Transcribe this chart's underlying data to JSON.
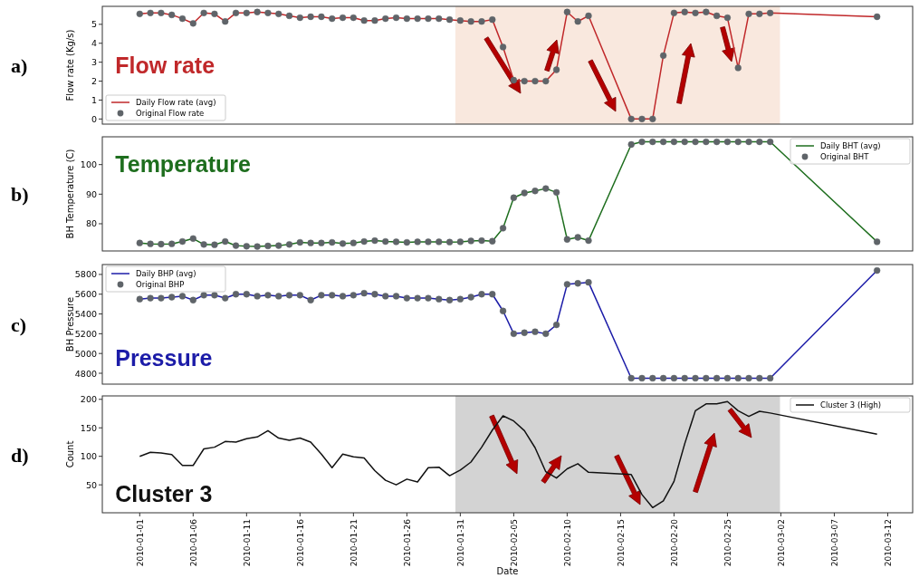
{
  "chart_data": [
    {
      "type": "line",
      "ylabel": "Flow rate (Kg/s)",
      "annotations": [
        "a)",
        "Flow rate"
      ],
      "xlim": [
        "2009-12-28T12:00",
        "2010-03-14T08:00"
      ],
      "ylim": [
        -0.27,
        5.95
      ],
      "yticks": [
        0,
        1,
        2,
        3,
        4,
        5
      ],
      "tick_labels": "y",
      "legend": "bottom left",
      "grid": false,
      "x": [
        "2010-01-01",
        "2010-01-02",
        "2010-01-03",
        "2010-01-04",
        "2010-01-05",
        "2010-01-06",
        "2010-01-07",
        "2010-01-08",
        "2010-01-09",
        "2010-01-10",
        "2010-01-11",
        "2010-01-12",
        "2010-01-13",
        "2010-01-14",
        "2010-01-15",
        "2010-01-16",
        "2010-01-17",
        "2010-01-18",
        "2010-01-19",
        "2010-01-20",
        "2010-01-21",
        "2010-01-22",
        "2010-01-23",
        "2010-01-24",
        "2010-01-25",
        "2010-01-26",
        "2010-01-27",
        "2010-01-28",
        "2010-01-29",
        "2010-01-30",
        "2010-01-31",
        "2010-02-01",
        "2010-02-02",
        "2010-02-03",
        "2010-02-04",
        "2010-02-05",
        "2010-02-06",
        "2010-02-07",
        "2010-02-08",
        "2010-02-09",
        "2010-02-10",
        "2010-02-11",
        "2010-02-12",
        "2010-02-16",
        "2010-02-17",
        "2010-02-18",
        "2010-02-19",
        "2010-02-20",
        "2010-02-21",
        "2010-02-22",
        "2010-02-23",
        "2010-02-24",
        "2010-02-25",
        "2010-02-26",
        "2010-02-27",
        "2010-02-28",
        "2010-03-01",
        "2010-03-11"
      ],
      "bands": [
        {
          "axis": "x",
          "from": "2010-01-30T13:00",
          "to": "2010-03-01T22:00",
          "color": "#f9e8de"
        }
      ],
      "series": [
        {
          "name": "Daily Flow rate (avg)",
          "color": "#c0282a",
          "values": [
            5.55,
            5.6,
            5.6,
            5.5,
            5.3,
            5.05,
            5.6,
            5.55,
            5.15,
            5.6,
            5.6,
            5.65,
            5.6,
            5.55,
            5.45,
            5.35,
            5.4,
            5.4,
            5.3,
            5.35,
            5.35,
            5.2,
            5.2,
            5.3,
            5.35,
            5.3,
            5.3,
            5.3,
            5.3,
            5.25,
            5.2,
            5.15,
            5.15,
            5.25,
            3.8,
            2.05,
            2.0,
            2.0,
            2.0,
            2.6,
            5.65,
            5.15,
            5.45,
            0,
            0,
            0,
            3.35,
            5.6,
            5.65,
            5.6,
            5.65,
            5.45,
            5.35,
            2.7,
            5.55,
            5.55,
            5.6,
            5.4
          ]
        },
        {
          "name": "Original Flow rate",
          "type": "scatter",
          "marker": "circle",
          "color": "#5f6469",
          "values": [
            5.55,
            5.6,
            5.6,
            5.5,
            5.3,
            5.05,
            5.6,
            5.55,
            5.15,
            5.6,
            5.6,
            5.65,
            5.6,
            5.55,
            5.45,
            5.35,
            5.4,
            5.4,
            5.3,
            5.35,
            5.35,
            5.2,
            5.2,
            5.3,
            5.35,
            5.3,
            5.3,
            5.3,
            5.3,
            5.25,
            5.2,
            5.15,
            5.15,
            5.25,
            3.8,
            2.05,
            2.0,
            2.0,
            2.0,
            2.6,
            5.65,
            5.15,
            5.45,
            0,
            0,
            0,
            3.35,
            5.6,
            5.65,
            5.6,
            5.65,
            5.45,
            5.35,
            2.7,
            5.55,
            5.55,
            5.6,
            5.4
          ]
        }
      ]
    },
    {
      "type": "line",
      "ylabel": "BH Temperature (C)",
      "annotations": [
        "b)",
        "Temperature"
      ],
      "xlim": [
        "2009-12-28T12:00",
        "2010-03-14T08:00"
      ],
      "ylim": [
        70.8,
        109.4
      ],
      "yticks": [
        80,
        90,
        100
      ],
      "tick_labels": "y",
      "legend": "top right",
      "grid": false,
      "x": [
        "2010-01-01",
        "2010-01-02",
        "2010-01-03",
        "2010-01-04",
        "2010-01-05",
        "2010-01-06",
        "2010-01-07",
        "2010-01-08",
        "2010-01-09",
        "2010-01-10",
        "2010-01-11",
        "2010-01-12",
        "2010-01-13",
        "2010-01-14",
        "2010-01-15",
        "2010-01-16",
        "2010-01-17",
        "2010-01-18",
        "2010-01-19",
        "2010-01-20",
        "2010-01-21",
        "2010-01-22",
        "2010-01-23",
        "2010-01-24",
        "2010-01-25",
        "2010-01-26",
        "2010-01-27",
        "2010-01-28",
        "2010-01-29",
        "2010-01-30",
        "2010-01-31",
        "2010-02-01",
        "2010-02-02",
        "2010-02-03",
        "2010-02-04",
        "2010-02-05",
        "2010-02-06",
        "2010-02-07",
        "2010-02-08",
        "2010-02-09",
        "2010-02-10",
        "2010-02-11",
        "2010-02-12",
        "2010-02-16",
        "2010-02-17",
        "2010-02-18",
        "2010-02-19",
        "2010-02-20",
        "2010-02-21",
        "2010-02-22",
        "2010-02-23",
        "2010-02-24",
        "2010-02-25",
        "2010-02-26",
        "2010-02-27",
        "2010-02-28",
        "2010-03-01",
        "2010-03-11"
      ],
      "series": [
        {
          "name": "Daily BHT (avg)",
          "color": "#1e6e1e",
          "values": [
            73.5,
            73.2,
            73.1,
            73.2,
            74,
            75,
            73,
            72.9,
            74,
            72.6,
            72.4,
            72.3,
            72.5,
            72.6,
            73,
            73.7,
            73.5,
            73.5,
            73.7,
            73.3,
            73.5,
            74,
            74.3,
            74,
            73.9,
            73.7,
            73.9,
            73.9,
            73.9,
            73.8,
            73.9,
            74.2,
            74.3,
            74.1,
            78.5,
            88.8,
            90.4,
            91.1,
            91.9,
            90.6,
            74.7,
            75.4,
            74.3,
            106.8,
            107.7,
            107.7,
            107.7,
            107.7,
            107.7,
            107.7,
            107.7,
            107.7,
            107.7,
            107.7,
            107.7,
            107.7,
            107.7,
            73.9
          ]
        },
        {
          "name": "Original BHT",
          "type": "scatter",
          "marker": "circle",
          "color": "#5f6469",
          "values": [
            73.5,
            73.2,
            73.1,
            73.2,
            74,
            75,
            73,
            72.9,
            74,
            72.6,
            72.4,
            72.3,
            72.5,
            72.6,
            73,
            73.7,
            73.5,
            73.5,
            73.7,
            73.3,
            73.5,
            74,
            74.3,
            74,
            73.9,
            73.7,
            73.9,
            73.9,
            73.9,
            73.8,
            73.9,
            74.2,
            74.3,
            74.1,
            78.5,
            88.8,
            90.4,
            91.1,
            91.9,
            90.6,
            74.7,
            75.4,
            74.3,
            106.8,
            107.7,
            107.7,
            107.7,
            107.7,
            107.7,
            107.7,
            107.7,
            107.7,
            107.7,
            107.7,
            107.7,
            107.7,
            107.7,
            73.9
          ]
        }
      ]
    },
    {
      "type": "line",
      "ylabel": "BH Pressure",
      "annotations": [
        "c)",
        "Pressure"
      ],
      "xlim": [
        "2009-12-28T12:00",
        "2010-03-14T08:00"
      ],
      "ylim": [
        4690,
        5900
      ],
      "yticks": [
        4800,
        5000,
        5200,
        5400,
        5600,
        5800
      ],
      "tick_labels": "y",
      "legend": "top left",
      "grid": false,
      "x": [
        "2010-01-01",
        "2010-01-02",
        "2010-01-03",
        "2010-01-04",
        "2010-01-05",
        "2010-01-06",
        "2010-01-07",
        "2010-01-08",
        "2010-01-09",
        "2010-01-10",
        "2010-01-11",
        "2010-01-12",
        "2010-01-13",
        "2010-01-14",
        "2010-01-15",
        "2010-01-16",
        "2010-01-17",
        "2010-01-18",
        "2010-01-19",
        "2010-01-20",
        "2010-01-21",
        "2010-01-22",
        "2010-01-23",
        "2010-01-24",
        "2010-01-25",
        "2010-01-26",
        "2010-01-27",
        "2010-01-28",
        "2010-01-29",
        "2010-01-30",
        "2010-01-31",
        "2010-02-01",
        "2010-02-02",
        "2010-02-03",
        "2010-02-04",
        "2010-02-05",
        "2010-02-06",
        "2010-02-07",
        "2010-02-08",
        "2010-02-09",
        "2010-02-10",
        "2010-02-11",
        "2010-02-12",
        "2010-02-16",
        "2010-02-17",
        "2010-02-18",
        "2010-02-19",
        "2010-02-20",
        "2010-02-21",
        "2010-02-22",
        "2010-02-23",
        "2010-02-24",
        "2010-02-25",
        "2010-02-26",
        "2010-02-27",
        "2010-02-28",
        "2010-03-01",
        "2010-03-11"
      ],
      "series": [
        {
          "name": "Daily BHP (avg)",
          "color": "#1c1ca8",
          "values": [
            5550,
            5560,
            5560,
            5570,
            5580,
            5540,
            5590,
            5590,
            5560,
            5600,
            5600,
            5580,
            5590,
            5580,
            5590,
            5590,
            5540,
            5590,
            5590,
            5580,
            5590,
            5610,
            5600,
            5580,
            5580,
            5560,
            5560,
            5560,
            5550,
            5540,
            5550,
            5570,
            5600,
            5600,
            5430,
            5200,
            5210,
            5220,
            5200,
            5290,
            5700,
            5710,
            5720,
            4750,
            4750,
            4750,
            4750,
            4750,
            4750,
            4750,
            4750,
            4750,
            4750,
            4750,
            4750,
            4750,
            4750,
            5840
          ]
        },
        {
          "name": "Original BHP",
          "type": "scatter",
          "marker": "circle",
          "color": "#5f6469",
          "values": [
            5550,
            5560,
            5560,
            5570,
            5580,
            5540,
            5590,
            5590,
            5560,
            5600,
            5600,
            5580,
            5590,
            5580,
            5590,
            5590,
            5540,
            5590,
            5590,
            5580,
            5590,
            5610,
            5600,
            5580,
            5580,
            5560,
            5560,
            5560,
            5550,
            5540,
            5550,
            5570,
            5600,
            5600,
            5430,
            5200,
            5210,
            5220,
            5200,
            5290,
            5700,
            5710,
            5720,
            4750,
            4750,
            4750,
            4750,
            4750,
            4750,
            4750,
            4750,
            4750,
            4750,
            4750,
            4750,
            4750,
            4750,
            5840
          ]
        }
      ]
    },
    {
      "type": "line",
      "xlabel": "Date",
      "ylabel": "Count",
      "annotations": [
        "d)",
        "Cluster 3"
      ],
      "xlim": [
        "2009-12-28T12:00",
        "2010-03-14T08:00"
      ],
      "ylim": [
        1,
        206
      ],
      "yticks": [
        50,
        100,
        150,
        200
      ],
      "legend": "top right",
      "grid": false,
      "xticks": [
        "2010-01-01",
        "2010-01-06",
        "2010-01-11",
        "2010-01-16",
        "2010-01-21",
        "2010-01-26",
        "2010-01-31",
        "2010-02-05",
        "2010-02-10",
        "2010-02-15",
        "2010-02-20",
        "2010-02-25",
        "2010-03-02",
        "2010-03-07",
        "2010-03-12"
      ],
      "x": [
        "2010-01-01",
        "2010-01-02",
        "2010-01-03",
        "2010-01-04",
        "2010-01-05",
        "2010-01-06",
        "2010-01-07",
        "2010-01-08",
        "2010-01-09",
        "2010-01-10",
        "2010-01-11",
        "2010-01-12",
        "2010-01-13",
        "2010-01-14",
        "2010-01-15",
        "2010-01-16",
        "2010-01-17",
        "2010-01-18",
        "2010-01-19",
        "2010-01-20",
        "2010-01-21",
        "2010-01-22",
        "2010-01-23",
        "2010-01-24",
        "2010-01-25",
        "2010-01-26",
        "2010-01-27",
        "2010-01-28",
        "2010-01-29",
        "2010-01-30",
        "2010-01-31",
        "2010-02-01",
        "2010-02-02",
        "2010-02-03",
        "2010-02-04",
        "2010-02-05",
        "2010-02-06",
        "2010-02-07",
        "2010-02-08",
        "2010-02-09",
        "2010-02-10",
        "2010-02-11",
        "2010-02-12",
        "2010-02-16",
        "2010-02-17",
        "2010-02-18",
        "2010-02-19",
        "2010-02-20",
        "2010-02-21",
        "2010-02-22",
        "2010-02-23",
        "2010-02-24",
        "2010-02-25",
        "2010-02-26",
        "2010-02-27",
        "2010-02-28",
        "2010-03-01",
        "2010-03-11"
      ],
      "bands": [
        {
          "axis": "x",
          "from": "2010-01-30T13:00",
          "to": "2010-03-01T22:00",
          "color": "#d3d3d3"
        }
      ],
      "series": [
        {
          "name": "Cluster 3 (High)",
          "color": "#111111",
          "values": [
            100,
            107,
            106,
            103,
            84,
            84,
            113,
            116,
            126,
            125,
            131,
            134,
            145,
            132,
            128,
            132,
            125,
            104,
            80,
            104,
            99,
            97,
            75,
            58,
            50,
            60,
            55,
            80,
            81,
            66,
            76,
            90,
            116,
            146,
            171,
            162,
            145,
            115,
            73,
            62,
            78,
            87,
            72,
            68,
            33,
            10,
            22,
            56,
            122,
            180,
            192,
            192,
            196,
            180,
            170,
            179,
            176,
            139
          ]
        }
      ]
    }
  ]
}
